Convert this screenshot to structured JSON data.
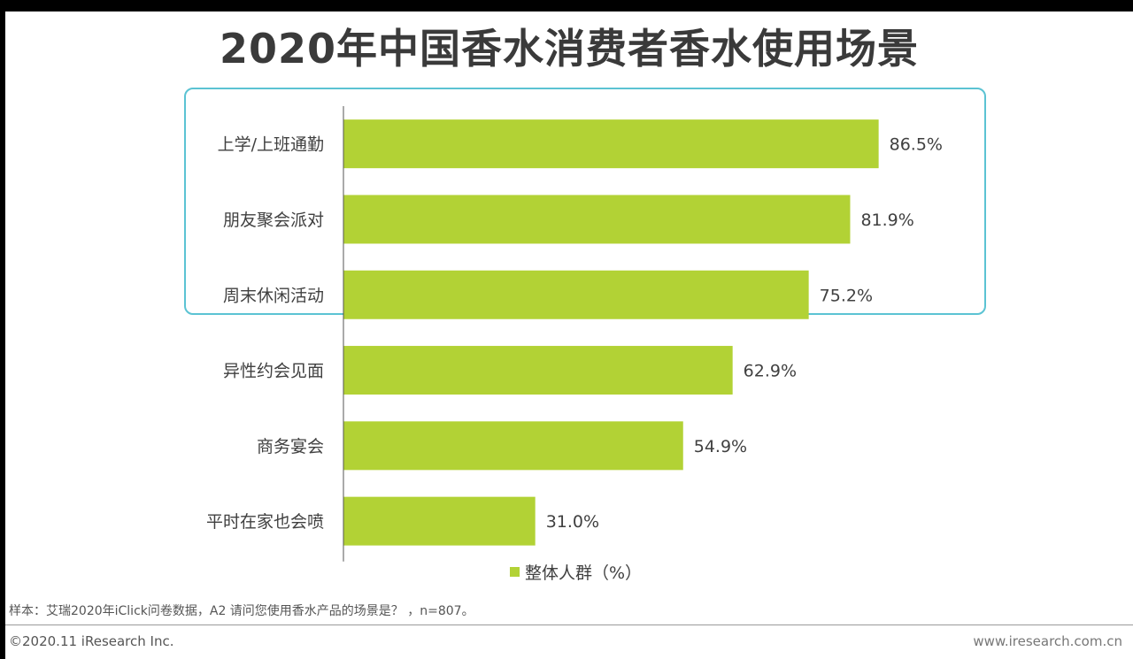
{
  "title": "2020年中国香水消费者香水使用场景",
  "legend_label": "整体人群（%）",
  "source_note": "样本：艾瑞2020年iClick问卷数据，A2 请问您使用香水产品的场景是？ ，n=807。",
  "copyright": "©2020.11 iResearch Inc.",
  "website": "www.iresearch.com.cn",
  "colors": {
    "bar": "#b2d235",
    "highlight_border": "#5bc3d3",
    "axis": "#555555"
  },
  "chart_data": {
    "type": "bar",
    "orientation": "horizontal",
    "categories": [
      "上学/上班通勤",
      "朋友聚会派对",
      "周末休闲活动",
      "异性约会见面",
      "商务宴会",
      "平时在家也会喷"
    ],
    "series": [
      {
        "name": "整体人群（%）",
        "values": [
          86.5,
          81.9,
          75.2,
          62.9,
          54.9,
          31.0
        ]
      }
    ],
    "value_labels": [
      "86.5%",
      "81.9%",
      "75.2%",
      "62.9%",
      "54.9%",
      "31.0%"
    ],
    "xlim": [
      0,
      100
    ],
    "grid": false,
    "legend": "bottom",
    "highlighted_categories": [
      "上学/上班通勤",
      "朋友聚会派对",
      "周末休闲活动"
    ]
  }
}
